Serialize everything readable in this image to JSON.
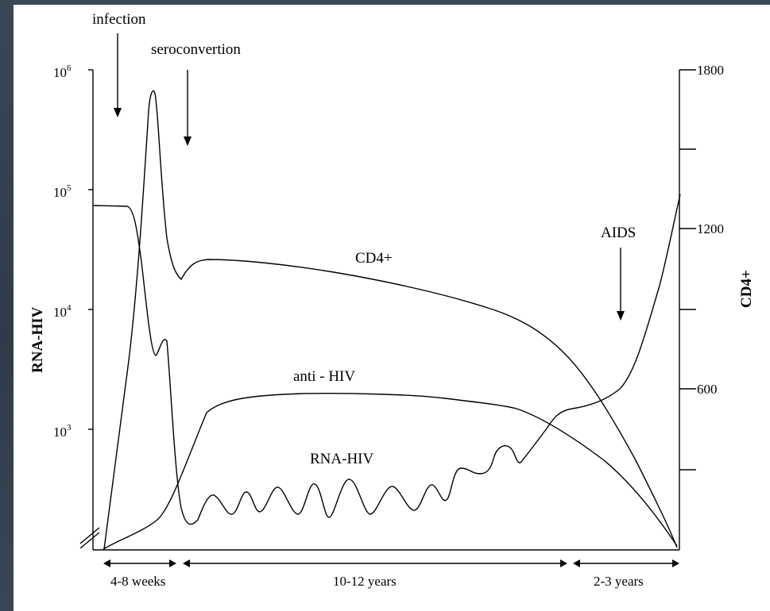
{
  "chart_data": {
    "type": "line",
    "y_left_label": "RNA-HIV",
    "y_right_label": "CD4+",
    "y_left_ticks": [
      {
        "base": "10",
        "exp": "6"
      },
      {
        "base": "10",
        "exp": "5"
      },
      {
        "base": "10",
        "exp": "4"
      },
      {
        "base": "10",
        "exp": "3"
      }
    ],
    "y_left_scale": "log",
    "y_right_ticks": [
      "1800",
      "1200",
      "600"
    ],
    "y_right_range": [
      0,
      1800
    ],
    "annotations": {
      "infection": "infection",
      "seroconversion": "seroconvertion",
      "aids": "AIDS"
    },
    "curve_labels": {
      "cd4": "CD4+",
      "anti_hiv": "anti - HIV",
      "rna_hiv": "RNA-HIV"
    },
    "periods": [
      "4-8 weeks",
      "10-12 years",
      "2-3 years"
    ],
    "series": [
      {
        "name": "RNA-HIV",
        "axis": "left",
        "shape": "acute peak ~6x10^5, drop to low oscillating set-point, rising again to ~7x10^4 near AIDS"
      },
      {
        "name": "CD4+",
        "axis": "right",
        "shape": "~1200 baseline, acute dip ~700, recovery ~1080, gradual decline to ~0"
      },
      {
        "name": "anti - HIV",
        "axis": "left",
        "shape": "rises after seroconversion to plateau, declines in final years"
      }
    ]
  }
}
